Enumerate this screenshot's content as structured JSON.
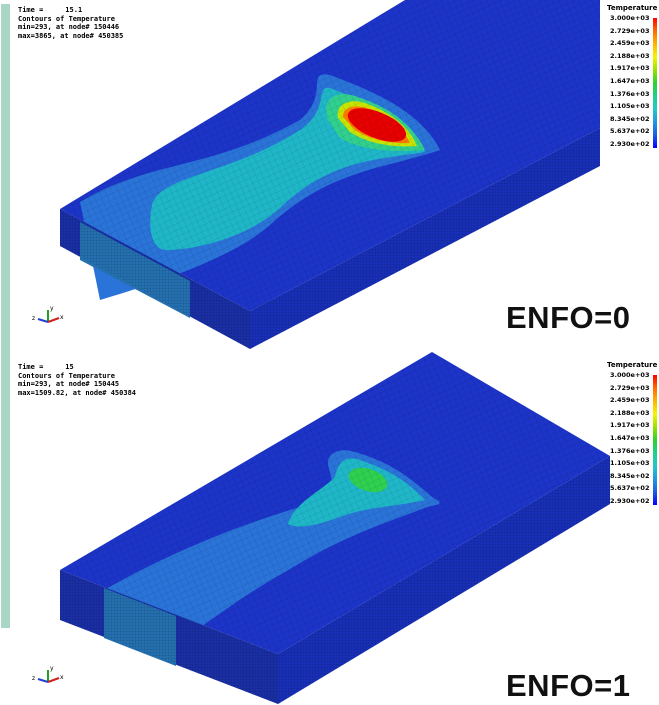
{
  "side_bar_color": "#a9d6c5",
  "legend_colors": [
    "#ff0000",
    "#ff6a00",
    "#ffb400",
    "#f5f500",
    "#9be000",
    "#2fd02f",
    "#1fd08a",
    "#25c8c8",
    "#2196e0",
    "#1d5ee0",
    "#0000ff"
  ],
  "panels": [
    {
      "header": {
        "time_label": "Time =",
        "time_value": "15.1",
        "contours_label": "Contours of Temperature",
        "min_text": "min=293, at node# 150446",
        "max_text": "max=3865, at node# 450385"
      },
      "legend": {
        "title": "Temperature",
        "ticks": [
          "3.000e+03",
          "2.729e+03",
          "2.459e+03",
          "2.188e+03",
          "1.917e+03",
          "1.647e+03",
          "1.376e+03",
          "1.105e+03",
          "8.345e+02",
          "5.637e+02",
          "2.930e+02"
        ]
      },
      "caption": "ENFO=0",
      "axis_icon": "xyz-axes-icon"
    },
    {
      "header": {
        "time_label": "Time =",
        "time_value": "15",
        "contours_label": "Contours of Temperature",
        "min_text": "min=293, at node# 150445",
        "max_text": "max=1509.82, at node# 450384"
      },
      "legend": {
        "title": "Temperature",
        "ticks": [
          "3.000e+03",
          "2.729e+03",
          "2.459e+03",
          "2.188e+03",
          "1.917e+03",
          "1.647e+03",
          "1.376e+03",
          "1.105e+03",
          "8.345e+02",
          "5.637e+02",
          "2.930e+02"
        ]
      },
      "caption": "ENFO=1",
      "axis_icon": "xyz-axes-icon"
    }
  ]
}
